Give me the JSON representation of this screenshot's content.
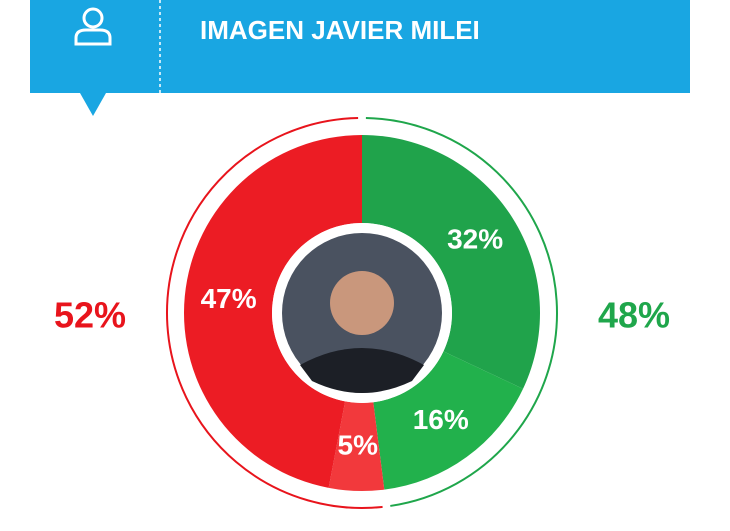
{
  "chart_data": {
    "type": "donut",
    "title": "IMAGEN JAVIER MILEI",
    "segments": {
      "values": [
        32,
        16,
        5,
        47
      ],
      "value_labels": [
        "32%",
        "16%",
        "5%",
        "47%"
      ],
      "colors": [
        "#20a34b",
        "#22b14c",
        "#f2393c",
        "#ec1c24"
      ]
    },
    "totals": {
      "values": [
        48,
        52
      ],
      "value_labels": [
        "48%",
        "52%"
      ],
      "colors": [
        "#1fa64b",
        "#e8141c"
      ]
    }
  }
}
